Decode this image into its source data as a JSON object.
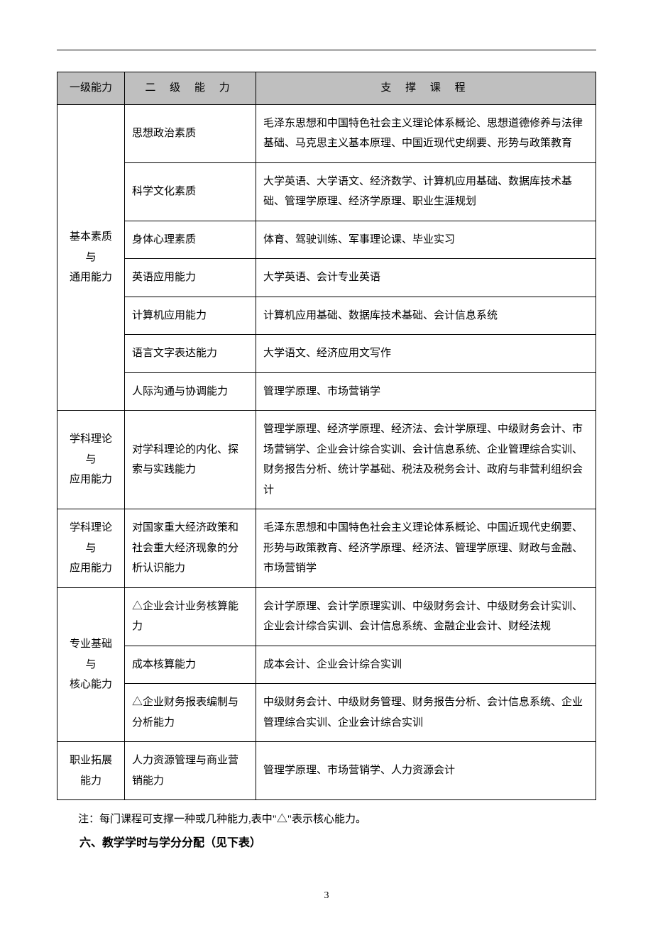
{
  "table": {
    "headers": {
      "level1": "一级能力",
      "level2": "二 级 能 力",
      "courses": "支 撑 课 程"
    },
    "groups": [
      {
        "level1": "基本素质与通用能力",
        "rows": [
          {
            "level2": "思想政治素质",
            "courses": "毛泽东思想和中国特色社会主义理论体系概论、思想道德修养与法律基础、马克思主义基本原理、中国近现代史纲要、形势与政策教育"
          },
          {
            "level2": "科学文化素质",
            "courses": "大学英语、大学语文、经济数学、计算机应用基础、数据库技术基础、管理学原理、经济学原理、职业生涯规划"
          },
          {
            "level2": "身体心理素质",
            "courses": "体育、驾驶训练、军事理论课、毕业实习"
          },
          {
            "level2": "英语应用能力",
            "courses": "大学英语、会计专业英语"
          },
          {
            "level2": "计算机应用能力",
            "courses": "计算机应用基础、数据库技术基础、会计信息系统"
          },
          {
            "level2": "语言文字表达能力",
            "courses": "大学语文、经济应用文写作"
          },
          {
            "level2": "人际沟通与协调能力",
            "courses": "管理学原理、市场营销学"
          }
        ]
      },
      {
        "level1": "学科理论与应用能力",
        "rows": [
          {
            "level2": "对学科理论的内化、探索与实践能力",
            "courses": "管理学原理、经济学原理、经济法、会计学原理、中级财务会计、市场营销学、企业会计综合实训、会计信息系统、企业管理综合实训、财务报告分析、统计学基础、税法及税务会计、政府与非营利组织会计"
          }
        ]
      },
      {
        "level1": "学科理论与应用能力",
        "rows": [
          {
            "level2": "对国家重大经济政策和社会重大经济现象的分析认识能力",
            "courses": "毛泽东思想和中国特色社会主义理论体系概论、中国近现代史纲要、形势与政策教育、经济学原理、经济法、管理学原理、财政与金融、市场营销学"
          }
        ]
      },
      {
        "level1": "专业基础与核心能力",
        "rows": [
          {
            "level2": "△企业会计业务核算能力",
            "courses": "会计学原理、会计学原理实训、中级财务会计、中级财务会计实训、企业会计综合实训、会计信息系统、金融企业会计、财经法规"
          },
          {
            "level2": "成本核算能力",
            "courses": "成本会计、企业会计综合实训"
          },
          {
            "level2": "△企业财务报表编制与分析能力",
            "courses": "中级财务会计、中级财务管理、财务报告分析、会计信息系统、企业管理综合实训、企业会计综合实训"
          }
        ]
      },
      {
        "level1": "职业拓展能力",
        "rows": [
          {
            "level2": "人力资源管理与商业营销能力",
            "courses": "管理学原理、市场营销学、人力资源会计"
          }
        ]
      }
    ]
  },
  "note": "注：每门课程可支撑一种或几种能力,表中\"△\"表示核心能力。",
  "section_heading": "六、教学学时与学分分配（见下表）",
  "page_number": "3",
  "styling": {
    "header_bg": "#bfbfbf",
    "border_color": "#000000",
    "font_size_body": 15,
    "font_size_heading": 16,
    "line_height": 1.9
  }
}
